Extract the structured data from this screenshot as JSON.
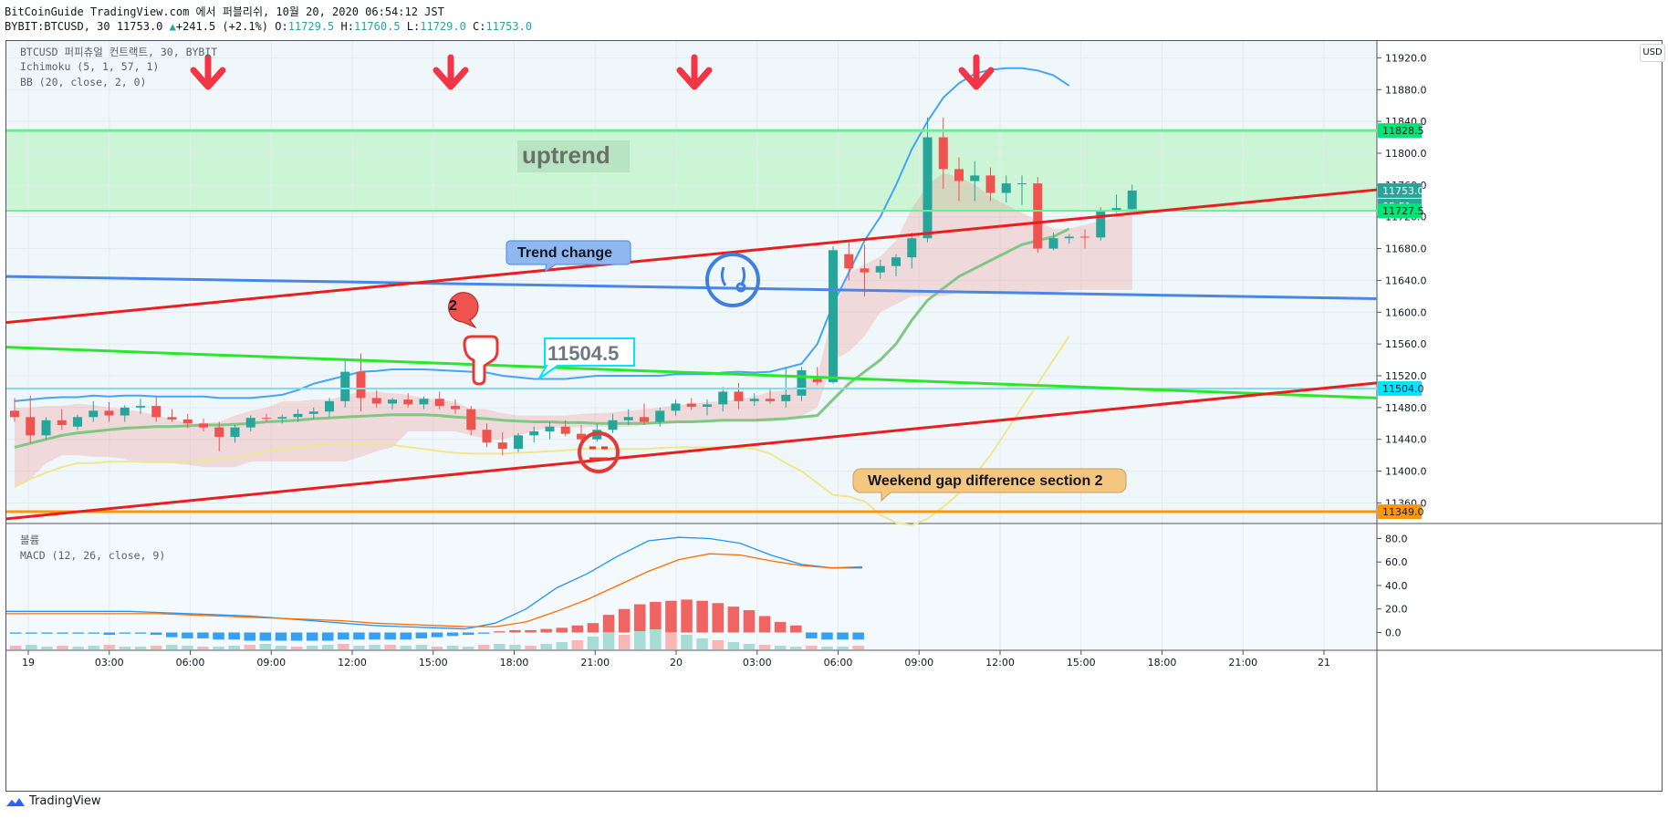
{
  "header": {
    "publish_line": "BitCoinGuide TradingView.com 에서 퍼블리쉬, 10월 20, 2020 06:54:12 JST",
    "symbol": "BYBIT:BTCUSD, 30 11753.0",
    "change": "+241.5 (+2.1%)",
    "o_label": "O:",
    "o_value": "11729.5",
    "h_label": "H:",
    "h_value": "11760.5",
    "l_label": "L:",
    "l_value": "11729.0",
    "c_label": "C:",
    "c_value": "11753.0"
  },
  "legend": {
    "title": "BTCUSD 퍼피츄얼 컨트랙트, 30, BYBIT",
    "ichimoku": "Ichimoku (5, 1, 57, 1)",
    "bb": "BB (20, close, 2, 0)",
    "volume": "볼륨",
    "macd": "MACD (12, 26, close, 9)"
  },
  "currency_button": "USD",
  "price_axis": [
    "11920.0",
    "11880.0",
    "11840.0",
    "11800.0",
    "11760.0",
    "11720.0",
    "11680.0",
    "11640.0",
    "11600.0",
    "11560.0",
    "11520.0",
    "11480.0",
    "11440.0",
    "11400.0",
    "11360.0"
  ],
  "macd_axis": [
    "80.0",
    "60.0",
    "40.0",
    "20.0",
    "0.0"
  ],
  "time_axis": [
    "19",
    "03:00",
    "06:00",
    "09:00",
    "12:00",
    "15:00",
    "18:00",
    "21:00",
    "20",
    "03:00",
    "06:00",
    "09:00",
    "12:00",
    "15:00",
    "18:00",
    "21:00",
    "21"
  ],
  "price_tags": [
    {
      "label": "11828.5",
      "color": "#00e676",
      "text_color": "#131722"
    },
    {
      "label": "11753.0",
      "color": "#26a69a",
      "text_color": "#ffffff"
    },
    {
      "label": "05:51",
      "color": "#26a69a",
      "text_color": "#ffffff"
    },
    {
      "label": "11727.5",
      "color": "#00e676",
      "text_color": "#131722"
    },
    {
      "label": "11504.0",
      "color": "#00e5ff",
      "text_color": "#131722"
    },
    {
      "label": "11349.0",
      "color": "#ff9800",
      "text_color": "#131722"
    }
  ],
  "annotations": {
    "uptrend": "uptrend",
    "trend_change": "Trend change",
    "price_callout": "11504.5",
    "weekend_gap": "Weekend gap difference section 2",
    "badge_number": "2"
  },
  "icons": [
    "down-arrow-icon",
    "pointing-hand-icon",
    "surprised-face-icon",
    "neutral-face-icon",
    "tradingview-logo-icon"
  ],
  "colors": {
    "up": "#26a69a",
    "down": "#ef5350",
    "zone_fill": "#ccf5d6",
    "arrow_red": "#f23645",
    "trend_red": "#e91e1e",
    "trend_green": "#2ee52e",
    "trend_blue": "#4a86e8",
    "support_orange": "#ff9800",
    "cyan_level": "#80deea"
  },
  "chart_data": {
    "type": "candlestick",
    "title": "BTCUSD 퍼피츄얼 컨트랙트, 30, BYBIT",
    "price_range": [
      11320,
      11940
    ],
    "macd_range": [
      -10,
      88
    ],
    "candles": [
      [
        11476,
        11492,
        11462,
        11468
      ],
      [
        11468,
        11495,
        11435,
        11445
      ],
      [
        11445,
        11468,
        11440,
        11464
      ],
      [
        11464,
        11478,
        11452,
        11458
      ],
      [
        11456,
        11471,
        11452,
        11468
      ],
      [
        11468,
        11488,
        11462,
        11476
      ],
      [
        11476,
        11487,
        11462,
        11470
      ],
      [
        11470,
        11483,
        11462,
        11480
      ],
      [
        11480,
        11491,
        11472,
        11482
      ],
      [
        11482,
        11493,
        11462,
        11468
      ],
      [
        11468,
        11478,
        11462,
        11465
      ],
      [
        11465,
        11472,
        11454,
        11460
      ],
      [
        11460,
        11466,
        11450,
        11455
      ],
      [
        11455,
        11462,
        11425,
        11443
      ],
      [
        11443,
        11458,
        11436,
        11455
      ],
      [
        11455,
        11470,
        11450,
        11467
      ],
      [
        11467,
        11472,
        11462,
        11466
      ],
      [
        11466,
        11471,
        11460,
        11468
      ],
      [
        11468,
        11478,
        11462,
        11472
      ],
      [
        11472,
        11480,
        11465,
        11475
      ],
      [
        11475,
        11492,
        11468,
        11488
      ],
      [
        11488,
        11540,
        11480,
        11525
      ],
      [
        11525,
        11548,
        11475,
        11492
      ],
      [
        11492,
        11502,
        11480,
        11485
      ],
      [
        11485,
        11492,
        11478,
        11490
      ],
      [
        11490,
        11498,
        11480,
        11484
      ],
      [
        11484,
        11494,
        11478,
        11491
      ],
      [
        11491,
        11500,
        11478,
        11482
      ],
      [
        11482,
        11490,
        11472,
        11478
      ],
      [
        11478,
        11482,
        11445,
        11452
      ],
      [
        11452,
        11460,
        11430,
        11436
      ],
      [
        11436,
        11449,
        11420,
        11428
      ],
      [
        11428,
        11448,
        11424,
        11445
      ],
      [
        11445,
        11456,
        11436,
        11450
      ],
      [
        11450,
        11462,
        11440,
        11456
      ],
      [
        11456,
        11464,
        11444,
        11447
      ],
      [
        11447,
        11458,
        11430,
        11440
      ],
      [
        11440,
        11460,
        11437,
        11452
      ],
      [
        11452,
        11472,
        11448,
        11464
      ],
      [
        11464,
        11478,
        11458,
        11468
      ],
      [
        11468,
        11485,
        11458,
        11462
      ],
      [
        11462,
        11480,
        11456,
        11476
      ],
      [
        11476,
        11490,
        11470,
        11485
      ],
      [
        11485,
        11492,
        11477,
        11481
      ],
      [
        11481,
        11490,
        11470,
        11484
      ],
      [
        11484,
        11506,
        11475,
        11500
      ],
      [
        11500,
        11511,
        11478,
        11488
      ],
      [
        11488,
        11498,
        11482,
        11491
      ],
      [
        11491,
        11504,
        11485,
        11488
      ],
      [
        11488,
        11531,
        11480,
        11496
      ],
      [
        11495,
        11531,
        11488,
        11527
      ],
      [
        11516,
        11531,
        11508,
        11512
      ],
      [
        11512,
        11683,
        11510,
        11678
      ],
      [
        11673,
        11690,
        11640,
        11655
      ],
      [
        11655,
        11685,
        11620,
        11650
      ],
      [
        11650,
        11666,
        11642,
        11658
      ],
      [
        11658,
        11673,
        11645,
        11669
      ],
      [
        11669,
        11700,
        11655,
        11693
      ],
      [
        11693,
        11845,
        11688,
        11820
      ],
      [
        11820,
        11845,
        11755,
        11780
      ],
      [
        11780,
        11795,
        11740,
        11765
      ],
      [
        11765,
        11790,
        11740,
        11772
      ],
      [
        11772,
        11782,
        11740,
        11750
      ],
      [
        11750,
        11772,
        11738,
        11762
      ],
      [
        11762,
        11772,
        11735,
        11762
      ],
      [
        11762,
        11770,
        11675,
        11680
      ],
      [
        11680,
        11700,
        11678,
        11693
      ],
      [
        11693,
        11698,
        11686,
        11695
      ],
      [
        11695,
        11704,
        11680,
        11694
      ],
      [
        11694,
        11732,
        11690,
        11728
      ],
      [
        11728,
        11748,
        11725,
        11731
      ],
      [
        11729.5,
        11760.5,
        11729,
        11753
      ]
    ],
    "levels": [
      11828.5,
      11727.5,
      11504.0,
      11349.0
    ],
    "macd_series": [
      {
        "name": "MACD",
        "values": [
          18,
          18,
          18,
          18,
          18,
          17,
          16,
          15,
          14,
          12,
          10,
          8,
          6,
          5,
          4,
          3,
          8,
          20,
          38,
          50,
          65,
          78,
          81,
          80,
          76,
          66,
          58,
          55,
          55
        ]
      },
      {
        "name": "Signal",
        "values": [
          16,
          16,
          16,
          16,
          16,
          16,
          15,
          14,
          13,
          12,
          11,
          10,
          8,
          7,
          6,
          5,
          5,
          9,
          18,
          28,
          40,
          52,
          62,
          67,
          66,
          61,
          57,
          55,
          56
        ]
      }
    ]
  }
}
